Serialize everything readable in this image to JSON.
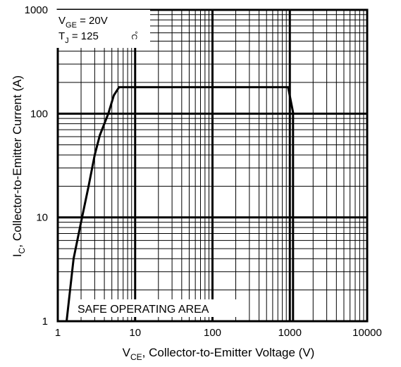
{
  "chart_data": {
    "type": "line",
    "xscale": "log",
    "yscale": "log",
    "xlim": [
      1,
      10000
    ],
    "ylim": [
      1,
      1000
    ],
    "grid": true,
    "xlabel": {
      "main": "V",
      "sub": "CE",
      "rest": ", Collector-to-Emitter Voltage (V)"
    },
    "ylabel": {
      "main": "I",
      "sub": "C",
      "rest": ",  Collector-to-Emitter Current (A)"
    },
    "x_tick_labels": [
      "1",
      "10",
      "100",
      "1000",
      "10000"
    ],
    "y_tick_labels": [
      "1",
      "10",
      "100",
      "1000"
    ],
    "conditions": [
      {
        "main": "V",
        "sub": "GE",
        "rest": " = 20V"
      },
      {
        "main": "T",
        "sub": "J",
        "rest": "  = 125",
        "unit": "°C"
      }
    ],
    "annotation": "SAFE OPERATING AREA",
    "series": [
      {
        "values": [
          [
            1.3,
            1
          ],
          [
            1.6,
            4
          ],
          [
            2,
            9
          ],
          [
            2.5,
            20
          ],
          [
            3,
            40
          ],
          [
            3.5,
            62
          ],
          [
            4.5,
            100
          ],
          [
            5.3,
            150
          ],
          [
            6.2,
            180
          ],
          [
            950,
            180
          ],
          [
            1100,
            103
          ],
          [
            1100,
            1
          ]
        ]
      }
    ]
  }
}
